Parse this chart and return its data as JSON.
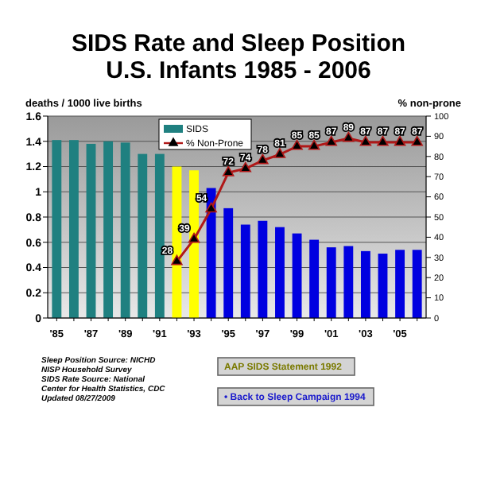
{
  "chart_data": {
    "type": "bar",
    "title": "SIDS Rate and Sleep Position\nU.S. Infants 1985 - 2006",
    "ylabel": "deaths / 1000 live births",
    "y2label": "% non-prone",
    "categories": [
      "'85",
      null,
      "'87",
      null,
      "'89",
      null,
      "'91",
      null,
      "'93",
      null,
      "'95",
      null,
      "'97",
      null,
      "'99",
      null,
      "'01",
      null,
      "'03",
      null,
      "'05",
      null
    ],
    "series": [
      {
        "name": "SIDS",
        "color": "#1f8080",
        "colors": [
          "#1f8080",
          "#1f8080",
          "#1f8080",
          "#1f8080",
          "#1f8080",
          "#1f8080",
          "#1f8080",
          "#ffff00",
          "#ffff00",
          "#0000e0",
          "#0000e0",
          "#0000e0",
          "#0000e0",
          "#0000e0",
          "#0000e0",
          "#0000e0",
          "#0000e0",
          "#0000e0",
          "#0000e0",
          "#0000e0",
          "#0000e0",
          "#0000e0"
        ],
        "values": [
          1.41,
          1.41,
          1.38,
          1.4,
          1.39,
          1.3,
          1.3,
          1.2,
          1.17,
          1.03,
          0.87,
          0.74,
          0.77,
          0.72,
          0.67,
          0.62,
          0.56,
          0.57,
          0.53,
          0.51,
          0.54,
          0.54
        ]
      },
      {
        "name": "% Non-Prone",
        "type": "line",
        "axis": "y2",
        "color": "#b01818",
        "marker": "triangle",
        "data_labels": true,
        "values": [
          null,
          null,
          null,
          null,
          null,
          null,
          null,
          28,
          39,
          54,
          72,
          74,
          78,
          81,
          85,
          85,
          87,
          89,
          87,
          87,
          87,
          87
        ]
      }
    ],
    "ylim": [
      0,
      1.6
    ],
    "yticks": [
      0,
      0.2,
      0.4,
      0.6,
      0.8,
      1,
      1.2,
      1.4,
      1.6
    ],
    "y2lim": [
      0,
      100
    ],
    "y2ticks": [
      0,
      10,
      20,
      30,
      40,
      50,
      60,
      70,
      80,
      90,
      100
    ],
    "grid": "y",
    "legend": "top",
    "annotations": [
      "Sleep Position Source:  NICHD\nNISP Household Survey\nSIDS Rate Source: National\nCenter for Health Statistics, CDC\nUpdated 08/27/2009",
      "AAP SIDS Statement 1992",
      "• Back to Sleep Campaign 1994"
    ]
  }
}
